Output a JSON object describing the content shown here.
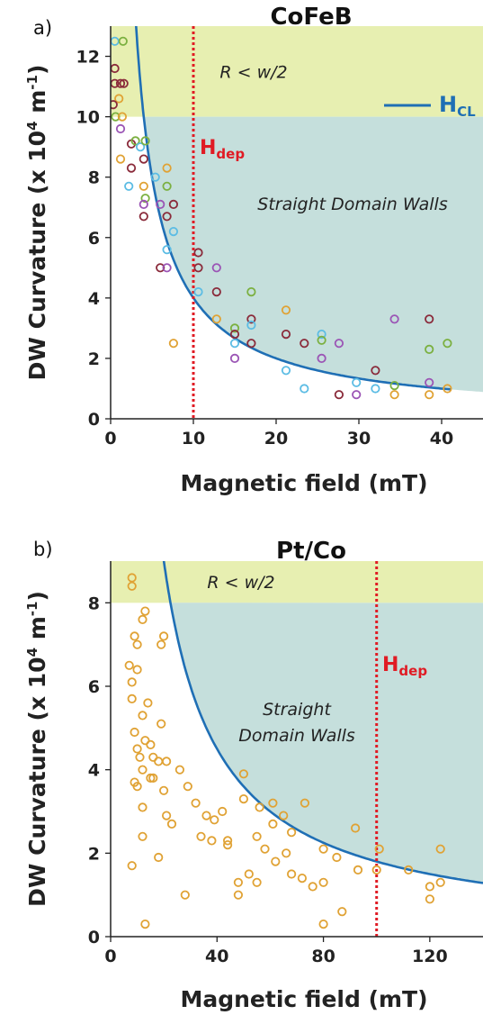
{
  "colors": {
    "region_top": "#e7efb1",
    "region_straight": "#c5dfdc",
    "curve": "#1f6fb5",
    "hdep_line": "#e01b24",
    "points_ptco": "#e0a234",
    "point_palette": [
      "#e0a234",
      "#5bbce4",
      "#8a2a3a",
      "#7bb040",
      "#9b55b5"
    ]
  },
  "chart_data": [
    {
      "type": "scatter",
      "panel_label": "a)",
      "title": "CoFeB",
      "xlabel": "Magnetic field (mT)",
      "ylabel_main": "DW Curvature (x 10",
      "ylabel_sup1": "4",
      "ylabel_mid": " m",
      "ylabel_sup2": "-1",
      "ylabel_end": ")",
      "xlim": [
        0,
        45
      ],
      "ylim": [
        0,
        13
      ],
      "xticks": [
        "0",
        "10",
        "20",
        "30",
        "40"
      ],
      "yticks": [
        "0",
        "2",
        "4",
        "6",
        "8",
        "10",
        "12"
      ],
      "grid": false,
      "region_top_label": "R < w/2",
      "region_straight_label": "Straight Domain Walls",
      "region_boundary_y": 10,
      "hdep_label_main": "H",
      "hdep_label_sub": "dep",
      "hdep_x": 10,
      "legend_label_main": "H",
      "legend_label_sub": "CL",
      "legend_position": "top-right",
      "curve_constant": 40,
      "points": [
        {
          "x": 0.5,
          "y": 12.5,
          "c": 1
        },
        {
          "x": 1.5,
          "y": 12.5,
          "c": 3
        },
        {
          "x": 0.5,
          "y": 11.6,
          "c": 2
        },
        {
          "x": 0.5,
          "y": 11.1,
          "c": 2
        },
        {
          "x": 1.2,
          "y": 11.1,
          "c": 2
        },
        {
          "x": 1.6,
          "y": 11.1,
          "c": 2
        },
        {
          "x": 1.0,
          "y": 10.6,
          "c": 0
        },
        {
          "x": 0.3,
          "y": 10.4,
          "c": 2
        },
        {
          "x": 0.6,
          "y": 10.0,
          "c": 3
        },
        {
          "x": 1.4,
          "y": 10.0,
          "c": 0
        },
        {
          "x": 1.2,
          "y": 9.6,
          "c": 4
        },
        {
          "x": 2.5,
          "y": 9.1,
          "c": 2
        },
        {
          "x": 3.0,
          "y": 9.2,
          "c": 3
        },
        {
          "x": 3.6,
          "y": 9.0,
          "c": 1
        },
        {
          "x": 4.2,
          "y": 9.2,
          "c": 3
        },
        {
          "x": 4.0,
          "y": 8.6,
          "c": 2
        },
        {
          "x": 1.2,
          "y": 8.6,
          "c": 0
        },
        {
          "x": 2.5,
          "y": 8.3,
          "c": 2
        },
        {
          "x": 6.8,
          "y": 8.3,
          "c": 0
        },
        {
          "x": 5.4,
          "y": 8.0,
          "c": 1
        },
        {
          "x": 4.0,
          "y": 7.7,
          "c": 0
        },
        {
          "x": 2.2,
          "y": 7.7,
          "c": 1
        },
        {
          "x": 6.8,
          "y": 7.7,
          "c": 3
        },
        {
          "x": 4.2,
          "y": 7.3,
          "c": 3
        },
        {
          "x": 4.0,
          "y": 7.1,
          "c": 4
        },
        {
          "x": 6.0,
          "y": 7.1,
          "c": 4
        },
        {
          "x": 7.6,
          "y": 7.1,
          "c": 2
        },
        {
          "x": 4.0,
          "y": 6.7,
          "c": 2
        },
        {
          "x": 6.8,
          "y": 6.7,
          "c": 2
        },
        {
          "x": 7.6,
          "y": 6.2,
          "c": 1
        },
        {
          "x": 6.8,
          "y": 5.6,
          "c": 1
        },
        {
          "x": 10.6,
          "y": 5.5,
          "c": 2
        },
        {
          "x": 6.0,
          "y": 5.0,
          "c": 2
        },
        {
          "x": 6.8,
          "y": 5.0,
          "c": 4
        },
        {
          "x": 10.6,
          "y": 5.0,
          "c": 2
        },
        {
          "x": 12.8,
          "y": 5.0,
          "c": 4
        },
        {
          "x": 10.6,
          "y": 4.2,
          "c": 1
        },
        {
          "x": 12.8,
          "y": 4.2,
          "c": 2
        },
        {
          "x": 17.0,
          "y": 4.2,
          "c": 3
        },
        {
          "x": 12.8,
          "y": 3.3,
          "c": 0
        },
        {
          "x": 21.2,
          "y": 3.6,
          "c": 0
        },
        {
          "x": 17.0,
          "y": 3.3,
          "c": 2
        },
        {
          "x": 17.0,
          "y": 3.1,
          "c": 1
        },
        {
          "x": 15.0,
          "y": 3.0,
          "c": 3
        },
        {
          "x": 15.0,
          "y": 2.8,
          "c": 2
        },
        {
          "x": 25.5,
          "y": 2.8,
          "c": 1
        },
        {
          "x": 21.2,
          "y": 2.8,
          "c": 2
        },
        {
          "x": 25.5,
          "y": 2.6,
          "c": 3
        },
        {
          "x": 15.0,
          "y": 2.5,
          "c": 1
        },
        {
          "x": 17.0,
          "y": 2.5,
          "c": 2
        },
        {
          "x": 23.4,
          "y": 2.5,
          "c": 2
        },
        {
          "x": 27.6,
          "y": 2.5,
          "c": 4
        },
        {
          "x": 7.6,
          "y": 2.5,
          "c": 0
        },
        {
          "x": 15.0,
          "y": 2.0,
          "c": 4
        },
        {
          "x": 25.5,
          "y": 2.0,
          "c": 4
        },
        {
          "x": 21.2,
          "y": 1.6,
          "c": 1
        },
        {
          "x": 32.0,
          "y": 1.6,
          "c": 2
        },
        {
          "x": 29.7,
          "y": 1.2,
          "c": 1
        },
        {
          "x": 38.5,
          "y": 1.2,
          "c": 4
        },
        {
          "x": 34.3,
          "y": 1.1,
          "c": 3
        },
        {
          "x": 23.4,
          "y": 1.0,
          "c": 1
        },
        {
          "x": 32.0,
          "y": 1.0,
          "c": 1
        },
        {
          "x": 40.7,
          "y": 1.0,
          "c": 0
        },
        {
          "x": 27.6,
          "y": 0.8,
          "c": 2
        },
        {
          "x": 29.7,
          "y": 0.8,
          "c": 4
        },
        {
          "x": 34.3,
          "y": 0.8,
          "c": 0
        },
        {
          "x": 38.5,
          "y": 0.8,
          "c": 0
        },
        {
          "x": 34.3,
          "y": 3.3,
          "c": 4
        },
        {
          "x": 38.5,
          "y": 3.3,
          "c": 2
        },
        {
          "x": 38.5,
          "y": 2.3,
          "c": 3
        },
        {
          "x": 40.7,
          "y": 2.5,
          "c": 3
        }
      ]
    },
    {
      "type": "scatter",
      "panel_label": "b)",
      "title": "Pt/Co",
      "xlabel": "Magnetic field (mT)",
      "ylabel_main": "DW Curvature (x 10",
      "ylabel_sup1": "4",
      "ylabel_mid": " m",
      "ylabel_sup2": "-1",
      "ylabel_end": ")",
      "xlim": [
        0,
        140
      ],
      "ylim": [
        0,
        9
      ],
      "xticks": [
        "0",
        "40",
        "80",
        "120"
      ],
      "yticks": [
        "0",
        "2",
        "4",
        "6",
        "8"
      ],
      "grid": false,
      "region_top_label": "R < w/2",
      "region_straight_label_line1": "Straight",
      "region_straight_label_line2": "Domain Walls",
      "region_boundary_y": 8,
      "hdep_label_main": "H",
      "hdep_label_sub": "dep",
      "hdep_x": 100,
      "curve_constant": 180,
      "points": [
        {
          "x": 8,
          "y": 8.6
        },
        {
          "x": 8,
          "y": 8.4
        },
        {
          "x": 13,
          "y": 7.8
        },
        {
          "x": 12,
          "y": 7.6
        },
        {
          "x": 9,
          "y": 7.2
        },
        {
          "x": 10,
          "y": 7.0
        },
        {
          "x": 19,
          "y": 7.0
        },
        {
          "x": 20,
          "y": 7.2
        },
        {
          "x": 7,
          "y": 6.5
        },
        {
          "x": 10,
          "y": 6.4
        },
        {
          "x": 8,
          "y": 6.1
        },
        {
          "x": 8,
          "y": 5.7
        },
        {
          "x": 14,
          "y": 5.6
        },
        {
          "x": 12,
          "y": 5.3
        },
        {
          "x": 19,
          "y": 5.1
        },
        {
          "x": 9,
          "y": 4.9
        },
        {
          "x": 13,
          "y": 4.7
        },
        {
          "x": 15,
          "y": 4.6
        },
        {
          "x": 10,
          "y": 4.5
        },
        {
          "x": 11,
          "y": 4.3
        },
        {
          "x": 16,
          "y": 4.3
        },
        {
          "x": 18,
          "y": 4.2
        },
        {
          "x": 21,
          "y": 4.2
        },
        {
          "x": 12,
          "y": 4.0
        },
        {
          "x": 26,
          "y": 4.0
        },
        {
          "x": 15,
          "y": 3.8
        },
        {
          "x": 16,
          "y": 3.8
        },
        {
          "x": 10,
          "y": 3.6
        },
        {
          "x": 9,
          "y": 3.7
        },
        {
          "x": 20,
          "y": 3.5
        },
        {
          "x": 29,
          "y": 3.6
        },
        {
          "x": 32,
          "y": 3.2
        },
        {
          "x": 12,
          "y": 3.1
        },
        {
          "x": 36,
          "y": 2.9
        },
        {
          "x": 21,
          "y": 2.9
        },
        {
          "x": 23,
          "y": 2.7
        },
        {
          "x": 39,
          "y": 2.8
        },
        {
          "x": 42,
          "y": 3.0
        },
        {
          "x": 34,
          "y": 2.4
        },
        {
          "x": 12,
          "y": 2.4
        },
        {
          "x": 38,
          "y": 2.3
        },
        {
          "x": 44,
          "y": 2.3
        },
        {
          "x": 44,
          "y": 2.2
        },
        {
          "x": 50,
          "y": 3.9
        },
        {
          "x": 50,
          "y": 3.3
        },
        {
          "x": 56,
          "y": 3.1
        },
        {
          "x": 61,
          "y": 3.2
        },
        {
          "x": 65,
          "y": 2.9
        },
        {
          "x": 61,
          "y": 2.7
        },
        {
          "x": 73,
          "y": 3.2
        },
        {
          "x": 68,
          "y": 2.5
        },
        {
          "x": 55,
          "y": 2.4
        },
        {
          "x": 58,
          "y": 2.1
        },
        {
          "x": 66,
          "y": 2.0
        },
        {
          "x": 80,
          "y": 2.1
        },
        {
          "x": 62,
          "y": 1.8
        },
        {
          "x": 18,
          "y": 1.9
        },
        {
          "x": 8,
          "y": 1.7
        },
        {
          "x": 68,
          "y": 1.5
        },
        {
          "x": 72,
          "y": 1.4
        },
        {
          "x": 80,
          "y": 1.3
        },
        {
          "x": 85,
          "y": 1.9
        },
        {
          "x": 52,
          "y": 1.5
        },
        {
          "x": 55,
          "y": 1.3
        },
        {
          "x": 48,
          "y": 1.3
        },
        {
          "x": 48,
          "y": 1.0
        },
        {
          "x": 28,
          "y": 1.0
        },
        {
          "x": 76,
          "y": 1.2
        },
        {
          "x": 87,
          "y": 0.6
        },
        {
          "x": 80,
          "y": 0.3
        },
        {
          "x": 13,
          "y": 0.3
        },
        {
          "x": 92,
          "y": 2.6
        },
        {
          "x": 93,
          "y": 1.6
        },
        {
          "x": 101,
          "y": 2.1
        },
        {
          "x": 100,
          "y": 1.6
        },
        {
          "x": 112,
          "y": 1.6
        },
        {
          "x": 120,
          "y": 1.2
        },
        {
          "x": 120,
          "y": 0.9
        },
        {
          "x": 124,
          "y": 1.3
        },
        {
          "x": 124,
          "y": 2.1
        }
      ]
    }
  ]
}
